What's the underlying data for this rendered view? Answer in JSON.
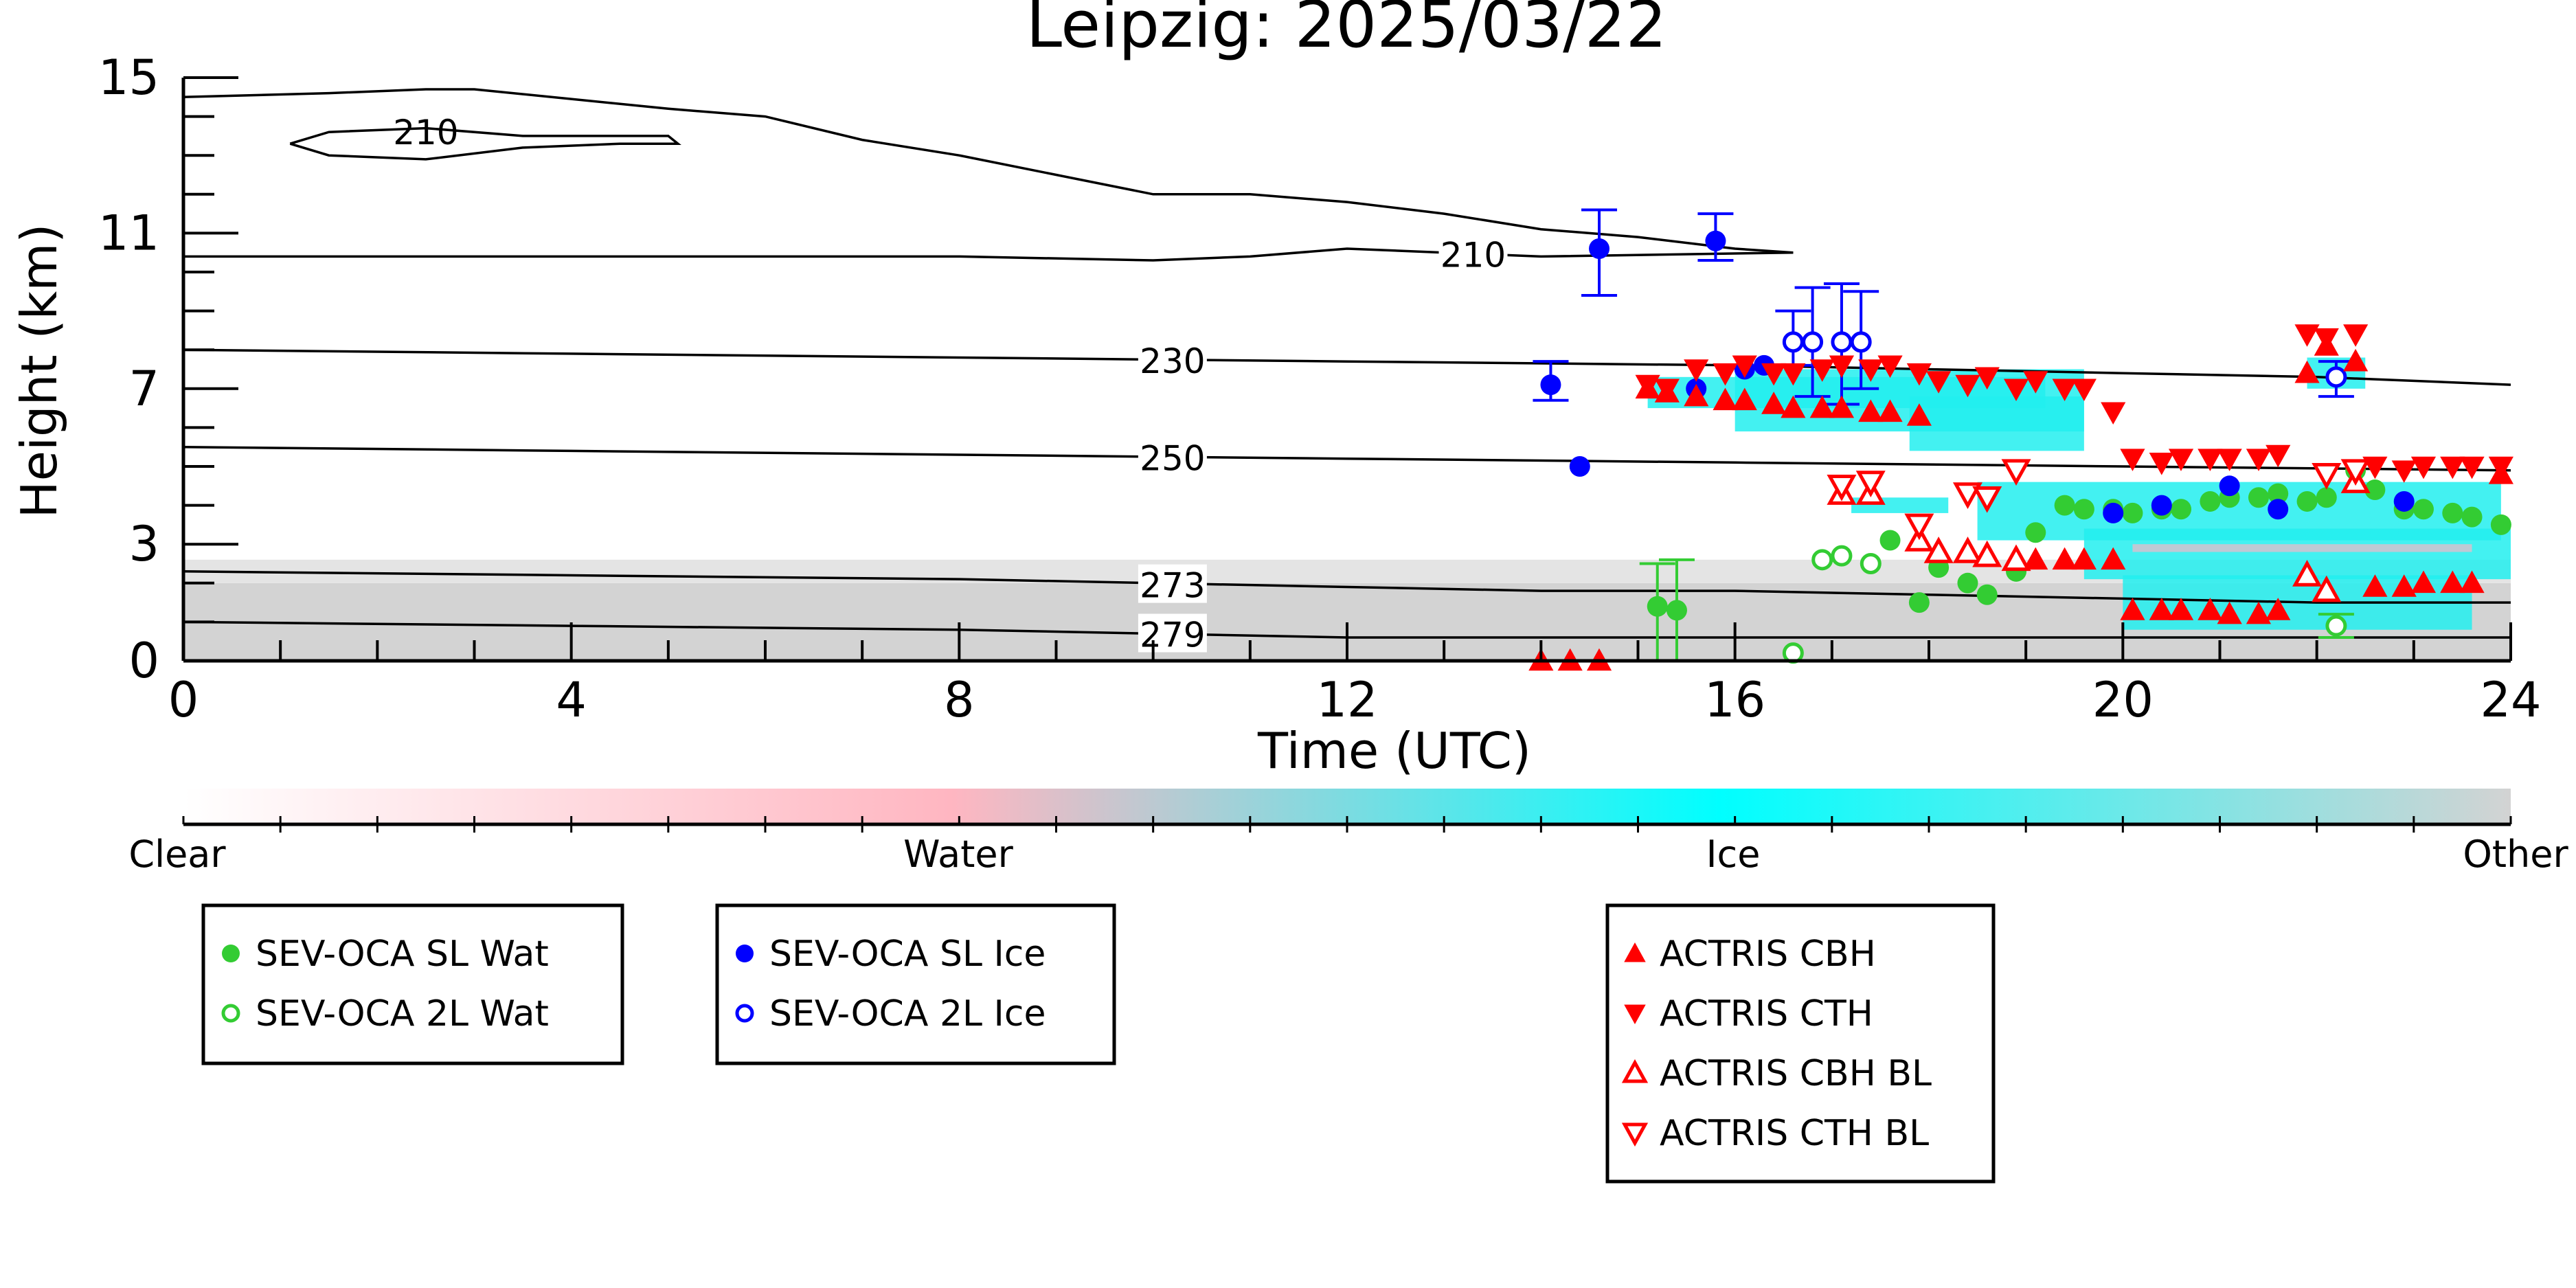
{
  "chart_data": {
    "type": "scatter",
    "title": "Leipzig: 2025/03/22",
    "xlabel": "Time (UTC)",
    "ylabel": "Height (km)",
    "xlim": [
      0,
      24
    ],
    "ylim": [
      0,
      15
    ],
    "x_ticks": [
      "0",
      "4",
      "8",
      "12",
      "16",
      "20",
      "24"
    ],
    "y_ticks": [
      "0",
      "3",
      "7",
      "11",
      "15"
    ],
    "colorbar": {
      "labels": [
        "Clear",
        "Water",
        "Ice",
        "Other"
      ],
      "colors": [
        "#ffffff",
        "#ffb6c1",
        "#00ffff",
        "#d3d3d3"
      ]
    },
    "contours": [
      {
        "label": "210",
        "points": [
          [
            0,
            14.5
          ],
          [
            1.5,
            14.6
          ],
          [
            2.5,
            14.7
          ],
          [
            3,
            14.7
          ],
          [
            5,
            14.2
          ],
          [
            6,
            14
          ],
          [
            7,
            13.4
          ],
          [
            8,
            13
          ],
          [
            9,
            12.5
          ],
          [
            10,
            12
          ],
          [
            11,
            12
          ],
          [
            12,
            11.8
          ],
          [
            13,
            11.5
          ],
          [
            14,
            11.1
          ],
          [
            15,
            10.9
          ],
          [
            16,
            10.6
          ],
          [
            16.6,
            10.5
          ]
        ]
      },
      {
        "label": "210",
        "points": [
          [
            1.1,
            13.3
          ],
          [
            1.5,
            13.6
          ],
          [
            2.5,
            13.7
          ],
          [
            3.5,
            13.5
          ],
          [
            5,
            13.5
          ],
          [
            5.1,
            13.3
          ],
          [
            4.5,
            13.3
          ],
          [
            3.5,
            13.2
          ],
          [
            2.5,
            12.9
          ],
          [
            1.5,
            13
          ],
          [
            1.1,
            13.3
          ]
        ]
      },
      {
        "label": "210",
        "points": [
          [
            0,
            10.4
          ],
          [
            4,
            10.4
          ],
          [
            8,
            10.4
          ],
          [
            10,
            10.3
          ],
          [
            11,
            10.4
          ],
          [
            12,
            10.6
          ],
          [
            13,
            10.5
          ],
          [
            14,
            10.4
          ],
          [
            16.6,
            10.5
          ]
        ]
      },
      {
        "label": "230",
        "points": [
          [
            0,
            8
          ],
          [
            4,
            7.9
          ],
          [
            8,
            7.8
          ],
          [
            12,
            7.7
          ],
          [
            16,
            7.6
          ],
          [
            20,
            7.4
          ],
          [
            22,
            7.3
          ],
          [
            24,
            7.1
          ]
        ]
      },
      {
        "label": "250",
        "points": [
          [
            0,
            5.5
          ],
          [
            4,
            5.4
          ],
          [
            8,
            5.3
          ],
          [
            12,
            5.2
          ],
          [
            16,
            5.1
          ],
          [
            20,
            5
          ],
          [
            24,
            4.9
          ]
        ]
      },
      {
        "label": "273",
        "points": [
          [
            0,
            2.3
          ],
          [
            4,
            2.2
          ],
          [
            8,
            2.1
          ],
          [
            10,
            2
          ],
          [
            12,
            1.9
          ],
          [
            14,
            1.8
          ],
          [
            16,
            1.8
          ],
          [
            18,
            1.7
          ],
          [
            20,
            1.6
          ],
          [
            22,
            1.5
          ],
          [
            24,
            1.5
          ]
        ]
      },
      {
        "label": "279",
        "points": [
          [
            0,
            1
          ],
          [
            4,
            0.9
          ],
          [
            8,
            0.8
          ],
          [
            10,
            0.7
          ],
          [
            12,
            0.6
          ],
          [
            14,
            0.6
          ],
          [
            16,
            0.6
          ],
          [
            18,
            0.6
          ],
          [
            20,
            0.6
          ],
          [
            22,
            0.6
          ],
          [
            24,
            0.6
          ]
        ]
      }
    ],
    "series": [
      {
        "name": "SEV-OCA SL Wat",
        "marker": "circle-filled",
        "color": "#33cc33",
        "x": [
          15.2,
          15.4,
          17.6,
          17.9,
          18.1,
          18.4,
          18.6,
          18.9,
          19.1,
          19.4,
          19.6,
          19.9,
          20.1,
          20.4,
          20.6,
          20.9,
          21.1,
          21.4,
          21.6,
          21.9,
          22.1,
          22.4,
          22.6,
          22.9,
          23.1,
          23.4,
          23.6,
          23.9
        ],
        "y": [
          1.4,
          1.3,
          3.1,
          1.5,
          2.4,
          2.0,
          1.7,
          2.3,
          3.3,
          4.0,
          3.9,
          3.9,
          3.8,
          3.9,
          3.9,
          4.1,
          4.2,
          4.2,
          4.3,
          4.1,
          4.2,
          4.9,
          4.4,
          3.9,
          3.9,
          3.8,
          3.7,
          3.5
        ]
      },
      {
        "name": "SEV-OCA 2L Wat",
        "marker": "circle-open",
        "color": "#33cc33",
        "x": [
          16.6,
          16.9,
          17.1,
          17.4,
          22.2
        ],
        "y": [
          0.2,
          2.6,
          2.7,
          2.5,
          0.9
        ]
      },
      {
        "name": "SEV-OCA SL Ice",
        "marker": "circle-filled",
        "color": "#0000ff",
        "x": [
          14.1,
          14.4,
          14.6,
          15.6,
          15.8,
          16.1,
          16.3,
          19.9,
          20.4,
          21.1,
          21.6,
          22.9
        ],
        "y": [
          7.1,
          5.0,
          10.6,
          7.0,
          10.8,
          7.5,
          7.6,
          3.8,
          4.0,
          4.5,
          3.9,
          4.1
        ]
      },
      {
        "name": "SEV-OCA 2L Ice",
        "marker": "circle-open",
        "color": "#0000ff",
        "x": [
          16.6,
          16.8,
          17.1,
          17.3,
          22.2
        ],
        "y": [
          8.2,
          8.2,
          8.2,
          8.2,
          7.3
        ]
      },
      {
        "name": "ACTRIS CBH",
        "marker": "triangle-up-filled",
        "color": "#ff0000",
        "x": [
          14.0,
          14.3,
          14.6,
          15.1,
          15.3,
          15.6,
          15.9,
          16.1,
          16.4,
          16.6,
          16.9,
          17.1,
          17.4,
          17.6,
          17.9,
          18.1,
          18.4,
          18.6,
          18.9,
          19.1,
          19.4,
          19.6,
          19.9,
          20.1,
          20.4,
          20.6,
          20.9,
          21.1,
          21.4,
          21.6,
          21.9,
          22.1,
          22.4,
          22.6,
          22.9,
          23.1,
          23.4,
          23.6,
          23.9
        ],
        "y": [
          0.0,
          0.0,
          0.0,
          7.0,
          6.9,
          6.8,
          6.7,
          6.7,
          6.6,
          6.5,
          6.5,
          6.5,
          6.4,
          6.4,
          6.3,
          2.8,
          2.8,
          2.7,
          2.6,
          2.6,
          2.6,
          2.6,
          2.6,
          1.3,
          1.3,
          1.3,
          1.3,
          1.2,
          1.2,
          1.3,
          7.4,
          8.1,
          7.7,
          1.9,
          1.9,
          2.0,
          2.0,
          2.0,
          4.8
        ]
      },
      {
        "name": "ACTRIS CTH",
        "marker": "triangle-down-filled",
        "color": "#ff0000",
        "x": [
          15.1,
          15.3,
          15.6,
          15.9,
          16.1,
          16.4,
          16.6,
          16.9,
          17.1,
          17.4,
          17.6,
          17.9,
          18.1,
          18.4,
          18.6,
          18.9,
          19.1,
          19.4,
          19.6,
          19.9,
          20.1,
          20.4,
          20.6,
          20.9,
          21.1,
          21.4,
          21.6,
          21.9,
          22.1,
          22.4,
          22.6,
          22.9,
          23.1,
          23.4,
          23.6,
          23.9
        ],
        "y": [
          7.1,
          7.0,
          7.5,
          7.4,
          7.6,
          7.4,
          7.4,
          7.5,
          7.6,
          7.5,
          7.6,
          7.4,
          7.2,
          7.1,
          7.3,
          7.0,
          7.2,
          7.0,
          7.0,
          6.4,
          5.2,
          5.1,
          5.2,
          5.2,
          5.2,
          5.2,
          5.3,
          8.4,
          8.3,
          8.4,
          5.0,
          4.9,
          5.0,
          5.0,
          5.0,
          5.0
        ]
      },
      {
        "name": "ACTRIS CBH BL",
        "marker": "triangle-up-open",
        "color": "#ff0000",
        "x": [
          17.1,
          17.4,
          17.9,
          18.1,
          18.4,
          18.6,
          18.9,
          21.9,
          22.1,
          22.4
        ],
        "y": [
          4.3,
          4.3,
          3.1,
          2.8,
          2.8,
          2.7,
          2.6,
          2.2,
          1.8,
          4.6
        ]
      },
      {
        "name": "ACTRIS CTH BL",
        "marker": "triangle-down-open",
        "color": "#ff0000",
        "x": [
          17.1,
          17.4,
          17.9,
          18.4,
          18.6,
          18.9,
          22.1,
          22.4
        ],
        "y": [
          4.5,
          4.6,
          3.5,
          4.3,
          4.2,
          4.9,
          4.8,
          4.9
        ]
      }
    ],
    "error_bars": [
      {
        "x": 14.6,
        "lo": 9.4,
        "hi": 11.6,
        "color": "#0000ff"
      },
      {
        "x": 14.1,
        "lo": 6.7,
        "hi": 7.7,
        "color": "#0000ff"
      },
      {
        "x": 15.8,
        "lo": 10.3,
        "hi": 11.5,
        "color": "#0000ff"
      },
      {
        "x": 16.6,
        "lo": 7.6,
        "hi": 9.0,
        "color": "#0000ff"
      },
      {
        "x": 16.8,
        "lo": 6.8,
        "hi": 9.6,
        "color": "#0000ff"
      },
      {
        "x": 17.1,
        "lo": 6.6,
        "hi": 9.7,
        "color": "#0000ff"
      },
      {
        "x": 17.3,
        "lo": 7.0,
        "hi": 9.5,
        "color": "#0000ff"
      },
      {
        "x": 22.2,
        "lo": 6.8,
        "hi": 7.7,
        "color": "#0000ff"
      },
      {
        "x": 15.2,
        "lo": 0.0,
        "hi": 2.5,
        "color": "#33cc33"
      },
      {
        "x": 15.4,
        "lo": 0.0,
        "hi": 2.6,
        "color": "#33cc33"
      },
      {
        "x": 22.2,
        "lo": 0.6,
        "hi": 1.2,
        "color": "#33cc33"
      }
    ],
    "legend": {
      "placement": "below",
      "groups": [
        [
          "SEV-OCA SL Wat",
          "SEV-OCA 2L Wat"
        ],
        [
          "SEV-OCA SL Ice",
          "SEV-OCA 2L Ice"
        ],
        [
          "ACTRIS CBH",
          "ACTRIS CTH",
          "ACTRIS CBH BL",
          "ACTRIS CTH BL"
        ]
      ]
    }
  }
}
